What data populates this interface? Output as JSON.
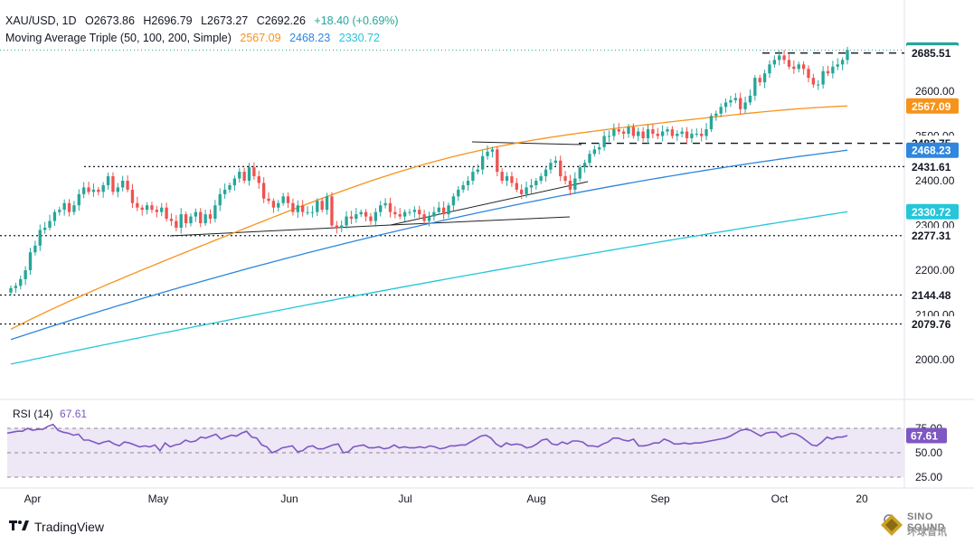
{
  "header": {
    "symbol": "XAU/USD, 1D",
    "open": "O2673.86",
    "high": "H2696.79",
    "low": "L2673.27",
    "close": "C2692.26",
    "change": "+18.40 (+0.69%)",
    "ma_label": "Moving Average Triple (50, 100, 200, Simple)",
    "ma50_value": "2567.09",
    "ma100_value": "2468.23",
    "ma200_value": "2330.72"
  },
  "rsi": {
    "label": "RSI (14)",
    "value": "67.61",
    "ticks": [
      "75.00",
      "50.00",
      "25.00"
    ]
  },
  "footer": {
    "brand": "TradingView",
    "watermark_line1": "SINO SOUND",
    "watermark_line2": "环球音讯"
  },
  "colors": {
    "up": "#26a69a",
    "down": "#ef5350",
    "ma50": "#f7931a",
    "ma100": "#2e86de",
    "ma200": "#26c6da",
    "rsi": "#7e57c2",
    "rsi_band": "#ede7f6",
    "last_price": "#26a69a"
  },
  "chart_data": {
    "type": "candlestick",
    "symbol": "XAU/USD",
    "timeframe": "1D",
    "y_ticks": [
      2000,
      2100,
      2200,
      2300,
      2400,
      2500,
      2600
    ],
    "y_tick_labels": [
      "2000.00",
      "2100.00",
      "2200.00",
      "2300.00",
      "2400.00",
      "2500.00",
      "2600.00"
    ],
    "ylim": [
      1960,
      2712
    ],
    "x_tick_labels": [
      "Apr",
      "May",
      "Jun",
      "Jul",
      "Aug",
      "Sep",
      "Oct",
      "20"
    ],
    "price_labels": [
      {
        "value": 2692.26,
        "text": "2692.26",
        "kind": "last"
      },
      {
        "value": 2685.51,
        "text": "2685.51",
        "kind": "level"
      },
      {
        "value": 2567.09,
        "text": "2567.09",
        "kind": "ma50"
      },
      {
        "value": 2483.75,
        "text": "2483.75",
        "kind": "level"
      },
      {
        "value": 2468.23,
        "text": "2468.23",
        "kind": "ma100"
      },
      {
        "value": 2431.61,
        "text": "2431.61",
        "kind": "level"
      },
      {
        "value": 2330.72,
        "text": "2330.72",
        "kind": "ma200"
      },
      {
        "value": 2277.31,
        "text": "2277.31",
        "kind": "level"
      },
      {
        "value": 2144.48,
        "text": "2144.48",
        "kind": "level"
      },
      {
        "value": 2079.76,
        "text": "2079.76",
        "kind": "level"
      }
    ],
    "closes": [
      2160,
      2165,
      2180,
      2200,
      2240,
      2255,
      2290,
      2295,
      2310,
      2330,
      2335,
      2350,
      2330,
      2345,
      2370,
      2385,
      2375,
      2380,
      2375,
      2390,
      2410,
      2375,
      2385,
      2400,
      2380,
      2350,
      2340,
      2335,
      2345,
      2335,
      2330,
      2340,
      2315,
      2310,
      2295,
      2325,
      2305,
      2320,
      2330,
      2305,
      2325,
      2315,
      2345,
      2370,
      2380,
      2390,
      2405,
      2420,
      2400,
      2430,
      2410,
      2395,
      2360,
      2355,
      2340,
      2350,
      2365,
      2350,
      2330,
      2345,
      2330,
      2330,
      2330,
      2355,
      2335,
      2365,
      2300,
      2295,
      2300,
      2320,
      2315,
      2325,
      2330,
      2320,
      2310,
      2330,
      2345,
      2350,
      2330,
      2325,
      2320,
      2330,
      2330,
      2335,
      2325,
      2310,
      2320,
      2330,
      2340,
      2325,
      2345,
      2365,
      2380,
      2390,
      2400,
      2420,
      2425,
      2455,
      2465,
      2470,
      2420,
      2400,
      2410,
      2395,
      2380,
      2370,
      2385,
      2390,
      2400,
      2410,
      2425,
      2440,
      2445,
      2410,
      2400,
      2380,
      2405,
      2430,
      2440,
      2460,
      2470,
      2475,
      2500,
      2500,
      2515,
      2510,
      2505,
      2520,
      2500,
      2510,
      2495,
      2515,
      2505,
      2500,
      2510,
      2515,
      2500,
      2505,
      2510,
      2495,
      2505,
      2505,
      2500,
      2515,
      2545,
      2550,
      2565,
      2575,
      2580,
      2585,
      2560,
      2575,
      2590,
      2630,
      2620,
      2640,
      2660,
      2670,
      2680,
      2670,
      2655,
      2650,
      2660,
      2650,
      2630,
      2615,
      2615,
      2645,
      2640,
      2655,
      2660,
      2670,
      2692.26
    ],
    "sma50": {
      "start": 2068,
      "end": 2567.09
    },
    "sma100": {
      "start": 2045,
      "end": 2468.23
    },
    "sma200": {
      "start": 1990,
      "end": 2330.72
    },
    "rsi_values": [
      70,
      71,
      72,
      72,
      75,
      73,
      74,
      74,
      77,
      79,
      73,
      71,
      70,
      68,
      69,
      63,
      63,
      61,
      59,
      61,
      62,
      59,
      57,
      61,
      60,
      58,
      56,
      57,
      56,
      58,
      52,
      60,
      56,
      58,
      59,
      63,
      61,
      62,
      66,
      65,
      67,
      69,
      64,
      66,
      68,
      67,
      70,
      72,
      66,
      65,
      58,
      56,
      50,
      52,
      55,
      56,
      57,
      51,
      52,
      56,
      57,
      54,
      54,
      56,
      58,
      59,
      50,
      51,
      56,
      57,
      58,
      55,
      55,
      56,
      54,
      55,
      58,
      55,
      56,
      55,
      55,
      56,
      55,
      57,
      56,
      54,
      55,
      57,
      57,
      58,
      58,
      61,
      64,
      67,
      68,
      65,
      59,
      56,
      60,
      58,
      59,
      58,
      55,
      56,
      59,
      63,
      64,
      59,
      58,
      61,
      59,
      62,
      62,
      61,
      57,
      57,
      56,
      59,
      61,
      65,
      65,
      63,
      62,
      64,
      57,
      57,
      58,
      60,
      60,
      64,
      62,
      59,
      59,
      60,
      59,
      60,
      60,
      61,
      62,
      63,
      64,
      65,
      67,
      70,
      73,
      74,
      73,
      70,
      67,
      70,
      71,
      71,
      66,
      68,
      70,
      69,
      66,
      62,
      58,
      57,
      61,
      66,
      64,
      66,
      66,
      67.61
    ]
  }
}
